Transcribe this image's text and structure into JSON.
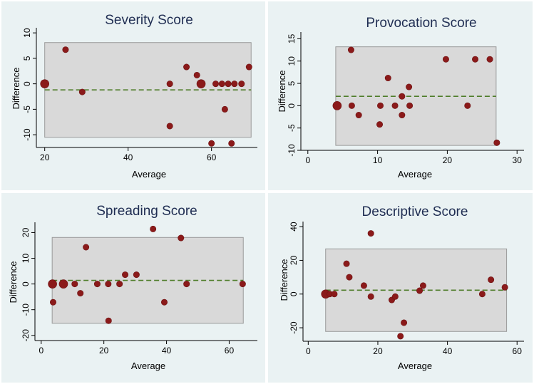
{
  "chart_data": [
    {
      "type": "scatter",
      "title": "Severity Score",
      "xlabel": "Average",
      "ylabel": "Difference",
      "xlim": [
        18,
        71
      ],
      "ylim": [
        -12.5,
        11
      ],
      "xticks": [
        20,
        40,
        60
      ],
      "yticks": [
        10,
        5,
        0,
        -5,
        -10
      ],
      "mean_difference": -1.2,
      "limits_of_agreement": [
        -10.5,
        8.1
      ],
      "band_x_range": [
        20,
        69.5
      ],
      "marker_color": "#8b1a1a",
      "band_color": "#d9d9d9",
      "mean_line_color": "#4f7d2a",
      "points": [
        {
          "x": 20,
          "y": 0,
          "large": true
        },
        {
          "x": 25,
          "y": 6.7
        },
        {
          "x": 29,
          "y": -1.6
        },
        {
          "x": 50,
          "y": 0
        },
        {
          "x": 50,
          "y": -8.3
        },
        {
          "x": 54,
          "y": 3.3
        },
        {
          "x": 56.5,
          "y": 1.7
        },
        {
          "x": 57.5,
          "y": 0,
          "large": true
        },
        {
          "x": 60,
          "y": -11.7
        },
        {
          "x": 61,
          "y": 0
        },
        {
          "x": 62.5,
          "y": 0
        },
        {
          "x": 63.2,
          "y": -5
        },
        {
          "x": 64,
          "y": 0
        },
        {
          "x": 64.8,
          "y": -11.7
        },
        {
          "x": 65.5,
          "y": 0
        },
        {
          "x": 67.2,
          "y": 0
        },
        {
          "x": 69,
          "y": 3.3
        }
      ]
    },
    {
      "type": "scatter",
      "title": "Provocation Score",
      "xlabel": "Average",
      "ylabel": "Difference",
      "xlim": [
        -1,
        31
      ],
      "ylim": [
        -10,
        16.5
      ],
      "xticks": [
        0,
        10,
        20,
        30
      ],
      "yticks": [
        15,
        10,
        5,
        0,
        -5,
        -10
      ],
      "mean_difference": 2.1,
      "limits_of_agreement": [
        -8.9,
        13.2
      ],
      "band_x_range": [
        4,
        27
      ],
      "marker_color": "#8b1a1a",
      "band_color": "#d9d9d9",
      "mean_line_color": "#4f7d2a",
      "points": [
        {
          "x": 4.2,
          "y": 0,
          "large": true
        },
        {
          "x": 6.2,
          "y": 12.5
        },
        {
          "x": 6.3,
          "y": 0
        },
        {
          "x": 7.3,
          "y": -2.1
        },
        {
          "x": 10.3,
          "y": -4.2
        },
        {
          "x": 10.4,
          "y": 0
        },
        {
          "x": 11.5,
          "y": 6.2
        },
        {
          "x": 12.5,
          "y": 0
        },
        {
          "x": 13.5,
          "y": 2.1
        },
        {
          "x": 13.5,
          "y": -2.1
        },
        {
          "x": 14.5,
          "y": 4.2
        },
        {
          "x": 14.6,
          "y": 0
        },
        {
          "x": 19.8,
          "y": 10.4
        },
        {
          "x": 22.9,
          "y": 0
        },
        {
          "x": 24,
          "y": 10.4
        },
        {
          "x": 26.1,
          "y": 10.4
        },
        {
          "x": 27.1,
          "y": -8.3
        }
      ]
    },
    {
      "type": "scatter",
      "title": "Spreading Score",
      "xlabel": "Average",
      "ylabel": "Difference",
      "xlim": [
        -2,
        69
      ],
      "ylim": [
        -22,
        24
      ],
      "xticks": [
        0,
        20,
        40,
        60
      ],
      "yticks": [
        20,
        10,
        0,
        -10,
        -20
      ],
      "mean_difference": 1.4,
      "limits_of_agreement": [
        -15.3,
        18.1
      ],
      "band_x_range": [
        3.5,
        64.5
      ],
      "marker_color": "#8b1a1a",
      "band_color": "#d9d9d9",
      "mean_line_color": "#4f7d2a",
      "points": [
        {
          "x": 3.6,
          "y": 0,
          "large": true
        },
        {
          "x": 3.8,
          "y": -7.1
        },
        {
          "x": 7.1,
          "y": 0,
          "large": true
        },
        {
          "x": 10.7,
          "y": 0
        },
        {
          "x": 12.5,
          "y": -3.6
        },
        {
          "x": 14.3,
          "y": 14.3
        },
        {
          "x": 17.9,
          "y": 0
        },
        {
          "x": 21.4,
          "y": 0
        },
        {
          "x": 21.5,
          "y": -14.3
        },
        {
          "x": 25,
          "y": 0
        },
        {
          "x": 26.8,
          "y": 3.6
        },
        {
          "x": 30.4,
          "y": 3.6
        },
        {
          "x": 35.7,
          "y": 21.4
        },
        {
          "x": 39.3,
          "y": -7.1
        },
        {
          "x": 44.6,
          "y": 17.9
        },
        {
          "x": 46.4,
          "y": 0
        },
        {
          "x": 64.3,
          "y": 0
        }
      ]
    },
    {
      "type": "scatter",
      "title": "Descriptive Score",
      "xlabel": "Average",
      "ylabel": "Difference",
      "xlim": [
        -1.5,
        62
      ],
      "ylim": [
        -28,
        43
      ],
      "xticks": [
        0,
        20,
        40,
        60
      ],
      "yticks": [
        40,
        20,
        0,
        -20
      ],
      "mean_difference": 2.3,
      "limits_of_agreement": [
        -22.2,
        26.8
      ],
      "band_x_range": [
        5,
        57
      ],
      "marker_color": "#8b1a1a",
      "band_color": "#d9d9d9",
      "mean_line_color": "#4f7d2a",
      "points": [
        {
          "x": 5,
          "y": 0,
          "large": true
        },
        {
          "x": 6.2,
          "y": 0
        },
        {
          "x": 7.5,
          "y": 0
        },
        {
          "x": 11,
          "y": 18
        },
        {
          "x": 11.8,
          "y": 10
        },
        {
          "x": 16,
          "y": 5
        },
        {
          "x": 18,
          "y": 36
        },
        {
          "x": 18,
          "y": -1.5
        },
        {
          "x": 24,
          "y": -3.5
        },
        {
          "x": 25,
          "y": -1.5
        },
        {
          "x": 26.5,
          "y": -25
        },
        {
          "x": 27.5,
          "y": -17
        },
        {
          "x": 32,
          "y": 2
        },
        {
          "x": 33,
          "y": 5
        },
        {
          "x": 50,
          "y": 0
        },
        {
          "x": 52.5,
          "y": 8.5
        },
        {
          "x": 56.5,
          "y": 4
        }
      ]
    }
  ]
}
